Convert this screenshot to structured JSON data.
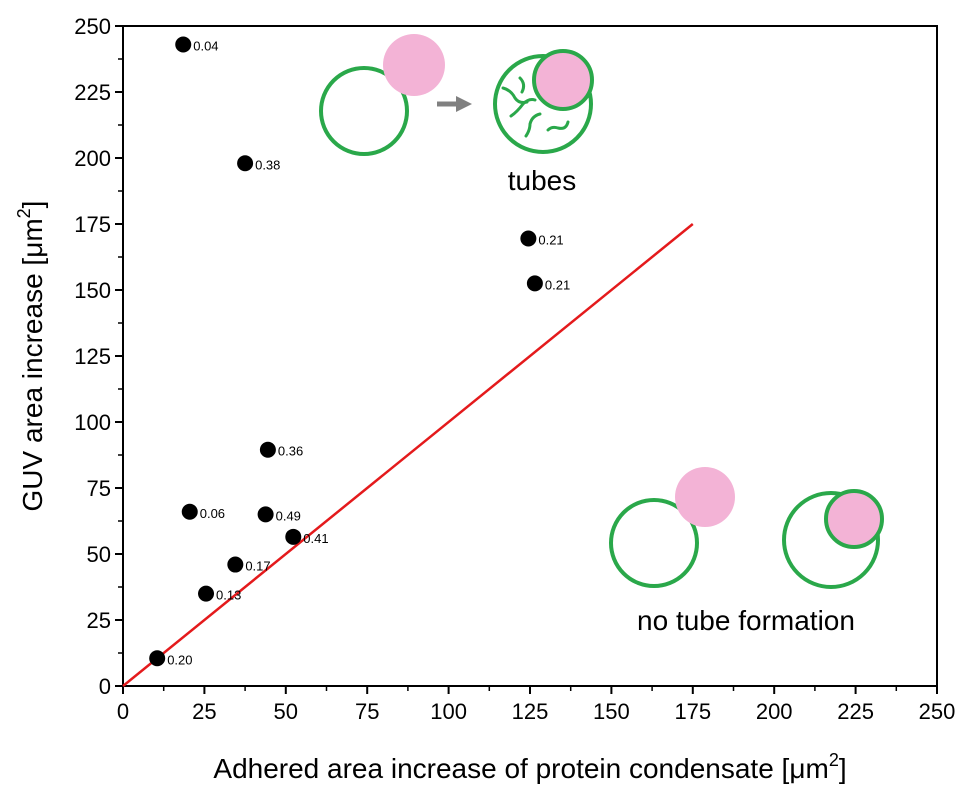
{
  "chart_data": {
    "type": "scatter",
    "title": "",
    "xlabel_main": "Adhered area increase of protein condensate [",
    "xlabel_unit": "μm",
    "xlabel_sup": "2",
    "xlabel_end": "]",
    "ylabel_main": "GUV area increase [",
    "ylabel_unit": "μm",
    "ylabel_sup": "2",
    "ylabel_end": "]",
    "xlim": [
      0,
      250
    ],
    "ylim": [
      0,
      250
    ],
    "xticks": [
      0,
      25,
      50,
      75,
      100,
      125,
      150,
      175,
      200,
      225,
      250
    ],
    "yticks": [
      0,
      25,
      50,
      75,
      100,
      125,
      150,
      175,
      200,
      225,
      250
    ],
    "grid": false,
    "points": [
      {
        "x": 18.5,
        "y": 243,
        "label": "0.04"
      },
      {
        "x": 37.5,
        "y": 198,
        "label": "0.38"
      },
      {
        "x": 124.5,
        "y": 169.5,
        "label": "0.21"
      },
      {
        "x": 126.5,
        "y": 152.5,
        "label": "0.21"
      },
      {
        "x": 44.5,
        "y": 89.5,
        "label": "0.36"
      },
      {
        "x": 20.5,
        "y": 66,
        "label": "0.06"
      },
      {
        "x": 43.8,
        "y": 65,
        "label": "0.49"
      },
      {
        "x": 52.3,
        "y": 56.5,
        "label": "0.41"
      },
      {
        "x": 34.5,
        "y": 46,
        "label": "0.17"
      },
      {
        "x": 25.5,
        "y": 35,
        "label": "0.13"
      },
      {
        "x": 10.5,
        "y": 10.5,
        "label": "0.20"
      }
    ],
    "reference_line": {
      "x": [
        0,
        175
      ],
      "y": [
        0,
        175
      ],
      "color": "#e41a1c"
    },
    "point_color": "#000000",
    "annotations": {
      "tubes": "tubes",
      "no_tube": "no tube formation"
    },
    "colors": {
      "membrane": "#2aa84a",
      "condensate": "#f3b3d6",
      "arrow": "#808080"
    }
  }
}
